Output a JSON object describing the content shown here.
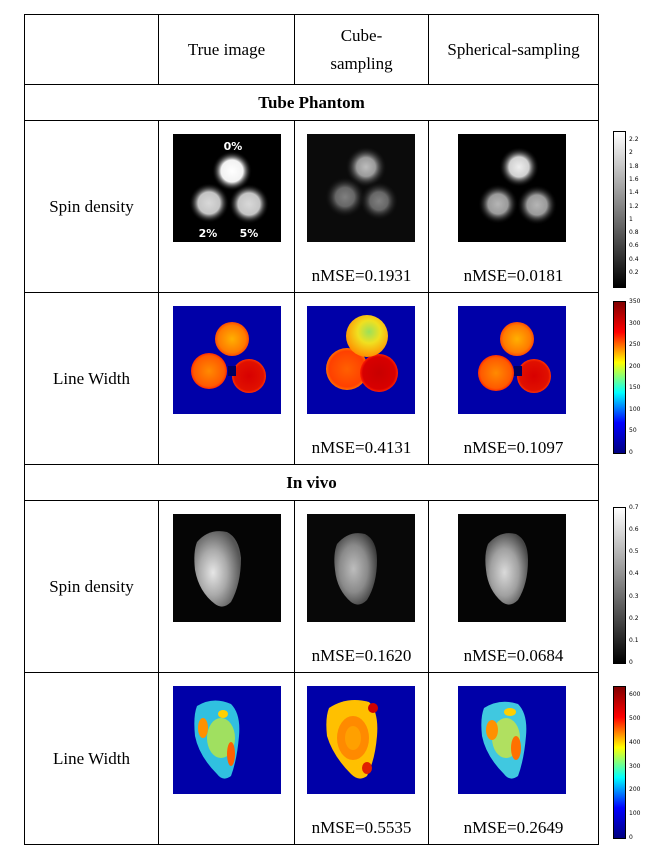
{
  "header": {
    "blank": "",
    "col_true": "True image",
    "col_cube_line1": "Cube-",
    "col_cube_line2": "sampling",
    "col_sph": "Spherical-sampling"
  },
  "sections": [
    {
      "title": "Tube Phantom",
      "rows": [
        {
          "label": "Spin density",
          "type": "gray",
          "phantom_labels": [
            "0%",
            "2%",
            "5%"
          ],
          "nmse_cube": "nMSE=0.1931",
          "nmse_sph": "nMSE=0.0181",
          "colorbar_ticks": [
            "2.2",
            "2",
            "1.8",
            "1.6",
            "1.4",
            "1.2",
            "1",
            "0.8",
            "0.6",
            "0.4",
            "0.2"
          ]
        },
        {
          "label": "Line Width",
          "type": "jet",
          "nmse_cube": "nMSE=0.4131",
          "nmse_sph": "nMSE=0.1097",
          "colorbar_ticks": [
            "350",
            "300",
            "250",
            "200",
            "150",
            "100",
            "50",
            "0"
          ]
        }
      ]
    },
    {
      "title": "In vivo",
      "rows": [
        {
          "label": "Spin density",
          "type": "gray",
          "nmse_cube": "nMSE=0.1620",
          "nmse_sph": "nMSE=0.0684",
          "colorbar_ticks": [
            "0.7",
            "0.6",
            "0.5",
            "0.4",
            "0.3",
            "0.2",
            "0.1",
            "0"
          ]
        },
        {
          "label": "Line Width",
          "type": "jet",
          "nmse_cube": "nMSE=0.5535",
          "nmse_sph": "nMSE=0.2649",
          "colorbar_ticks": [
            "600",
            "500",
            "400",
            "300",
            "200",
            "100",
            "0"
          ]
        }
      ]
    }
  ],
  "colors": {
    "jet_background": "#0000a8",
    "gray_background": "#000000"
  }
}
